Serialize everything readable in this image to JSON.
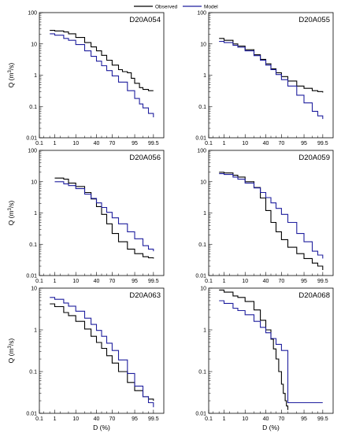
{
  "legend": {
    "observed": "Observed",
    "model": "Model"
  },
  "colors": {
    "observed": "#000000",
    "model": "#1f1f9e"
  },
  "chart_data": [
    {
      "type": "line",
      "title": "D20A054",
      "xlabel": "",
      "ylabel": "Q (m3/s)",
      "show_xticks": true,
      "xlim": [
        0.1,
        99.9
      ],
      "ylim": [
        0.01,
        100
      ],
      "x_scale": "normal-probability",
      "y_scale": "log",
      "xticks": [
        "0.1",
        "1",
        "10",
        "40",
        "70",
        "95",
        "99.5"
      ],
      "yticks": [
        "0.01",
        "0.1",
        "1",
        "10",
        "100"
      ],
      "series": [
        {
          "name": "Observed",
          "x": [
            0.5,
            1,
            3,
            5,
            10,
            20,
            30,
            40,
            50,
            60,
            70,
            80,
            85,
            90,
            93,
            95,
            97,
            98,
            99,
            99.5
          ],
          "y": [
            27,
            26,
            24,
            21,
            16,
            11,
            8,
            6,
            4.3,
            3,
            2.1,
            1.5,
            1.3,
            1.2,
            0.8,
            0.55,
            0.4,
            0.35,
            0.32,
            0.32
          ]
        },
        {
          "name": "Model",
          "x": [
            0.5,
            1,
            3,
            5,
            10,
            20,
            30,
            40,
            50,
            60,
            70,
            80,
            90,
            95,
            97,
            98,
            99,
            99.5
          ],
          "y": [
            21,
            19,
            15,
            13,
            9.5,
            6,
            4,
            2.8,
            2,
            1.4,
            0.95,
            0.6,
            0.32,
            0.18,
            0.12,
            0.09,
            0.06,
            0.045
          ]
        }
      ]
    },
    {
      "type": "line",
      "title": "D20A055",
      "xlabel": "",
      "ylabel": "",
      "show_xticks": true,
      "xlim": [
        0.1,
        99.9
      ],
      "ylim": [
        0.01,
        100
      ],
      "x_scale": "normal-probability",
      "y_scale": "log",
      "xticks": [
        "0.1",
        "1",
        "10",
        "40",
        "70",
        "95",
        "99.5"
      ],
      "yticks": [
        "0.01",
        "0.1",
        "1",
        "10",
        "100"
      ],
      "series": [
        {
          "name": "Observed",
          "x": [
            0.5,
            1,
            3,
            5,
            10,
            20,
            30,
            40,
            50,
            60,
            70,
            80,
            90,
            95,
            98,
            99,
            99.5
          ],
          "y": [
            15,
            13,
            10,
            8.5,
            6.5,
            4.5,
            3.2,
            2.3,
            1.6,
            1.2,
            0.9,
            0.65,
            0.45,
            0.38,
            0.32,
            0.3,
            0.28
          ]
        },
        {
          "name": "Model",
          "x": [
            0.5,
            1,
            3,
            5,
            10,
            20,
            30,
            40,
            50,
            60,
            70,
            80,
            90,
            95,
            98,
            99,
            99.5
          ],
          "y": [
            12,
            11,
            9,
            7.8,
            6,
            4.2,
            3,
            2.1,
            1.5,
            1.05,
            0.72,
            0.45,
            0.23,
            0.13,
            0.07,
            0.05,
            0.04
          ]
        }
      ]
    },
    {
      "type": "line",
      "title": "D20A056",
      "xlabel": "",
      "ylabel": "Q (m3/s)",
      "show_xticks": true,
      "xlim": [
        0.1,
        99.9
      ],
      "ylim": [
        0.01,
        100
      ],
      "x_scale": "normal-probability",
      "y_scale": "log",
      "xticks": [
        "0.1",
        "1",
        "10",
        "40",
        "70",
        "95",
        "99.5"
      ],
      "yticks": [
        "0.01",
        "0.1",
        "1",
        "10",
        "100"
      ],
      "series": [
        {
          "name": "Observed",
          "x": [
            1,
            3,
            5,
            10,
            20,
            30,
            40,
            50,
            60,
            70,
            80,
            90,
            95,
            98,
            99,
            99.5
          ],
          "y": [
            13,
            12,
            9,
            7,
            4.5,
            2.8,
            1.6,
            0.9,
            0.45,
            0.22,
            0.12,
            0.07,
            0.05,
            0.04,
            0.037,
            0.035
          ]
        },
        {
          "name": "Model",
          "x": [
            1,
            3,
            5,
            10,
            20,
            30,
            40,
            50,
            60,
            70,
            80,
            90,
            95,
            98,
            99,
            99.5
          ],
          "y": [
            10,
            8.5,
            7.5,
            6,
            4,
            2.9,
            2.1,
            1.5,
            1.05,
            0.7,
            0.45,
            0.25,
            0.15,
            0.09,
            0.07,
            0.06
          ]
        }
      ]
    },
    {
      "type": "line",
      "title": "D20A059",
      "xlabel": "",
      "ylabel": "",
      "show_xticks": true,
      "xlim": [
        0.1,
        99.9
      ],
      "ylim": [
        0.01,
        100
      ],
      "x_scale": "normal-probability",
      "y_scale": "log",
      "xticks": [
        "0.1",
        "1",
        "10",
        "40",
        "70",
        "95",
        "99.5"
      ],
      "yticks": [
        "0.01",
        "0.1",
        "1",
        "10",
        "100"
      ],
      "series": [
        {
          "name": "Observed",
          "x": [
            0.5,
            1,
            3,
            5,
            10,
            20,
            30,
            40,
            50,
            60,
            70,
            80,
            90,
            95,
            98,
            99,
            99.5
          ],
          "y": [
            20,
            19,
            16,
            14,
            10,
            6.5,
            3,
            1.2,
            0.5,
            0.25,
            0.14,
            0.08,
            0.05,
            0.035,
            0.025,
            0.02,
            0.015
          ]
        },
        {
          "name": "Model",
          "x": [
            0.5,
            1,
            3,
            5,
            10,
            20,
            30,
            40,
            50,
            60,
            70,
            80,
            90,
            95,
            98,
            99,
            99.5
          ],
          "y": [
            18,
            17,
            14,
            12,
            9,
            6.3,
            4.5,
            3.1,
            2.1,
            1.4,
            0.9,
            0.5,
            0.22,
            0.12,
            0.06,
            0.045,
            0.035
          ]
        }
      ]
    },
    {
      "type": "line",
      "title": "D20A063",
      "xlabel": "D (%)",
      "ylabel": "Q (m3/s)",
      "show_xticks": true,
      "xlim": [
        0.1,
        99.9
      ],
      "ylim": [
        0.01,
        10
      ],
      "x_scale": "normal-probability",
      "y_scale": "log",
      "xticks": [
        "0.1",
        "1",
        "10",
        "40",
        "70",
        "95",
        "99.5"
      ],
      "yticks": [
        "0.01",
        "0.1",
        "1",
        "10"
      ],
      "series": [
        {
          "name": "Observed",
          "x": [
            0.5,
            1,
            3,
            5,
            10,
            20,
            30,
            40,
            50,
            60,
            70,
            80,
            90,
            95,
            98,
            99,
            99.5
          ],
          "y": [
            4.2,
            3.6,
            2.6,
            2.2,
            1.6,
            1.05,
            0.7,
            0.5,
            0.36,
            0.24,
            0.16,
            0.1,
            0.055,
            0.035,
            0.025,
            0.022,
            0.02
          ]
        },
        {
          "name": "Model",
          "x": [
            0.5,
            1,
            3,
            5,
            10,
            20,
            30,
            40,
            50,
            60,
            70,
            80,
            90,
            95,
            98,
            99,
            99.5
          ],
          "y": [
            6,
            5.4,
            4.4,
            3.7,
            2.8,
            1.9,
            1.35,
            0.97,
            0.7,
            0.48,
            0.32,
            0.19,
            0.09,
            0.045,
            0.025,
            0.018,
            0.014
          ]
        }
      ]
    },
    {
      "type": "line",
      "title": "D20A068",
      "xlabel": "D (%)",
      "ylabel": "",
      "show_xticks": true,
      "xlim": [
        0.1,
        99.9
      ],
      "ylim": [
        0.01,
        10
      ],
      "x_scale": "normal-probability",
      "y_scale": "log",
      "xticks": [
        "0.1",
        "1",
        "10",
        "40",
        "70",
        "95",
        "99.5"
      ],
      "yticks": [
        "0.01",
        "0.1",
        "1",
        "10"
      ],
      "series": [
        {
          "name": "Observed",
          "x": [
            0.5,
            1,
            3,
            5,
            10,
            20,
            30,
            40,
            50,
            55,
            60,
            65,
            70,
            73,
            76,
            78,
            80
          ],
          "y": [
            9,
            8,
            6.5,
            6,
            4.8,
            3,
            1.7,
            1,
            0.6,
            0.35,
            0.2,
            0.1,
            0.05,
            0.03,
            0.02,
            0.015,
            0.012
          ]
        },
        {
          "name": "Model",
          "x": [
            0.5,
            1,
            3,
            5,
            10,
            20,
            30,
            40,
            50,
            60,
            70,
            80,
            80,
            99.5
          ],
          "y": [
            5,
            4.3,
            3.3,
            2.9,
            2.3,
            1.6,
            1.15,
            0.85,
            0.62,
            0.45,
            0.32,
            0.21,
            0.018,
            0.018
          ]
        }
      ]
    }
  ]
}
